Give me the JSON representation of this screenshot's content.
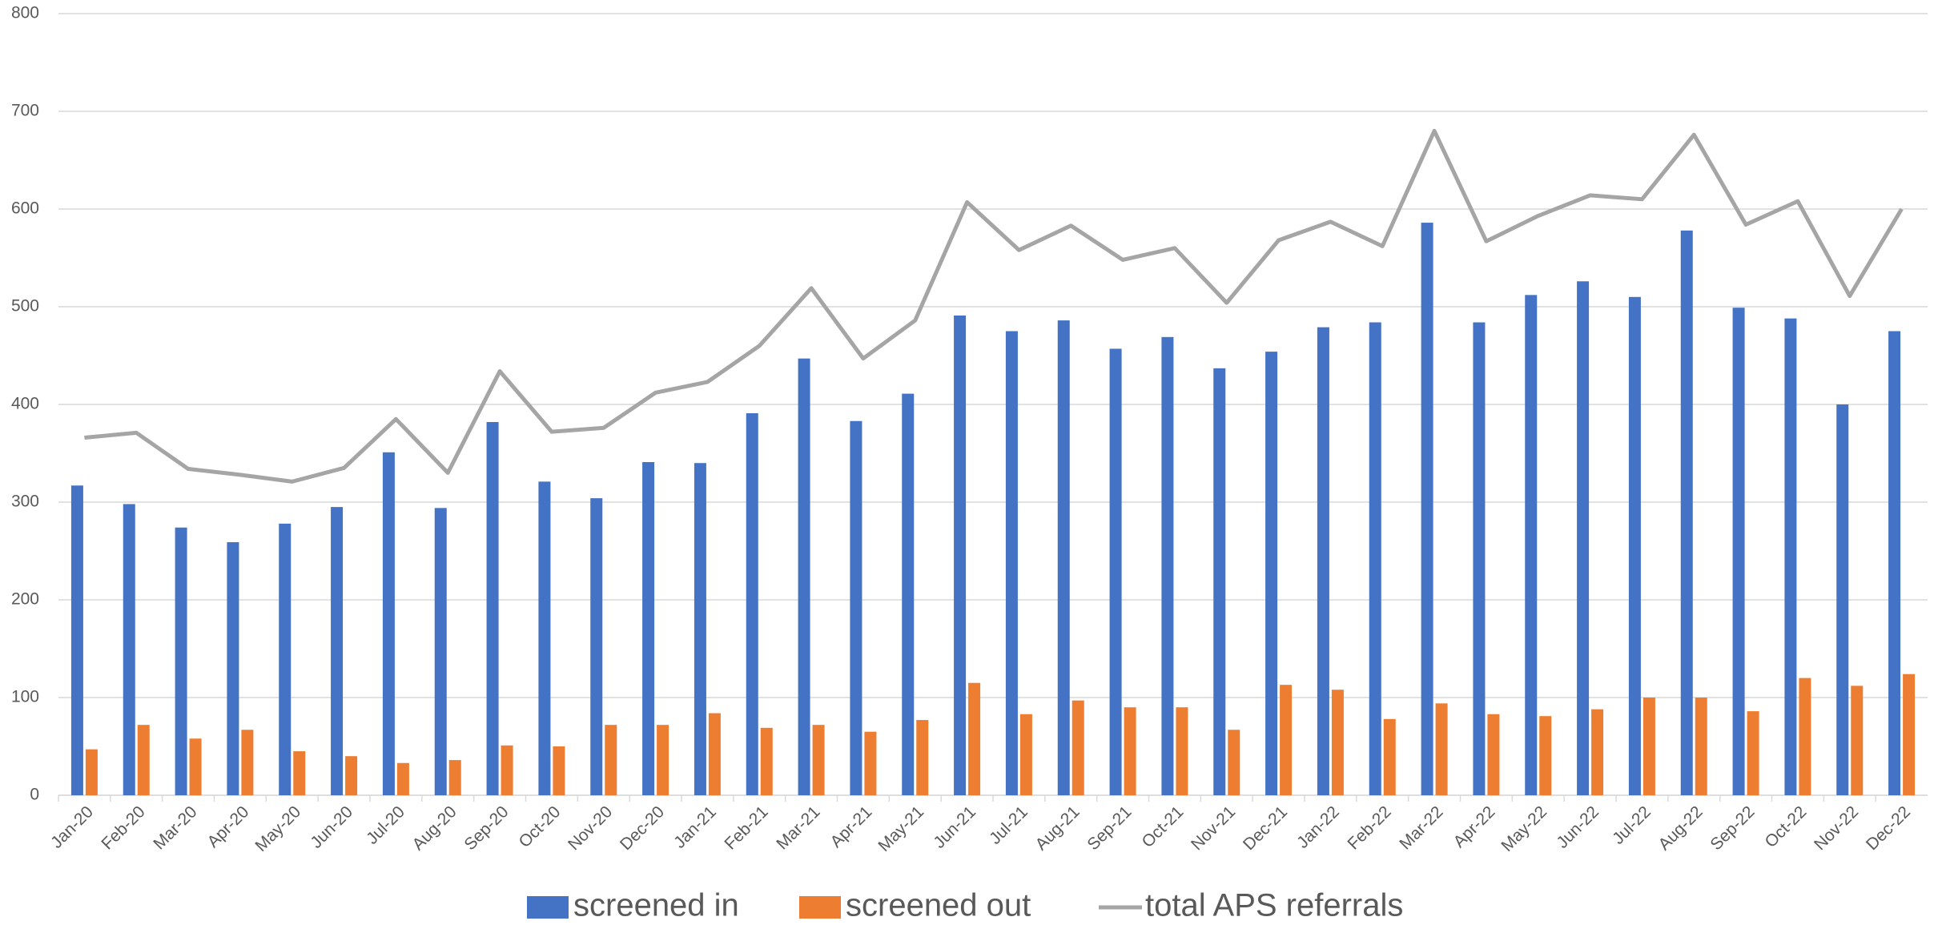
{
  "chart_data": {
    "type": "bar",
    "categories": [
      "Jan-20",
      "Feb-20",
      "Mar-20",
      "Apr-20",
      "May-20",
      "Jun-20",
      "Jul-20",
      "Aug-20",
      "Sep-20",
      "Oct-20",
      "Nov-20",
      "Dec-20",
      "Jan-21",
      "Feb-21",
      "Mar-21",
      "Apr-21",
      "May-21",
      "Jun-21",
      "Jul-21",
      "Aug-21",
      "Sep-21",
      "Oct-21",
      "Nov-21",
      "Dec-21",
      "Jan-22",
      "Feb-22",
      "Mar-22",
      "Apr-22",
      "May-22",
      "Jun-22",
      "Jul-22",
      "Aug-22",
      "Sep-22",
      "Oct-22",
      "Nov-22",
      "Dec-22"
    ],
    "series": [
      {
        "name": "screened in",
        "type": "bar",
        "color": "#4472c4",
        "values": [
          317,
          298,
          274,
          259,
          278,
          295,
          351,
          294,
          382,
          321,
          304,
          341,
          340,
          391,
          447,
          383,
          411,
          491,
          475,
          486,
          457,
          469,
          437,
          454,
          479,
          484,
          586,
          484,
          512,
          526,
          510,
          578,
          499,
          488,
          400,
          475
        ]
      },
      {
        "name": "screened out",
        "type": "bar",
        "color": "#ed7d31",
        "values": [
          47,
          72,
          58,
          67,
          45,
          40,
          33,
          36,
          51,
          50,
          72,
          72,
          84,
          69,
          72,
          65,
          77,
          115,
          83,
          97,
          90,
          90,
          67,
          113,
          108,
          78,
          94,
          83,
          81,
          88,
          100,
          100,
          86,
          120,
          112,
          124
        ]
      },
      {
        "name": "total APS referrals",
        "type": "line",
        "color": "#a5a5a5",
        "values": [
          366,
          371,
          334,
          328,
          321,
          335,
          385,
          330,
          434,
          372,
          376,
          412,
          423,
          460,
          519,
          447,
          486,
          607,
          558,
          583,
          548,
          560,
          504,
          568,
          587,
          562,
          680,
          567,
          593,
          614,
          610,
          676,
          584,
          608,
          511,
          600
        ]
      }
    ],
    "ylim": [
      0,
      800
    ],
    "yticks": [
      0,
      100,
      200,
      300,
      400,
      500,
      600,
      700,
      800
    ],
    "grid": true,
    "legend": "bottom"
  }
}
